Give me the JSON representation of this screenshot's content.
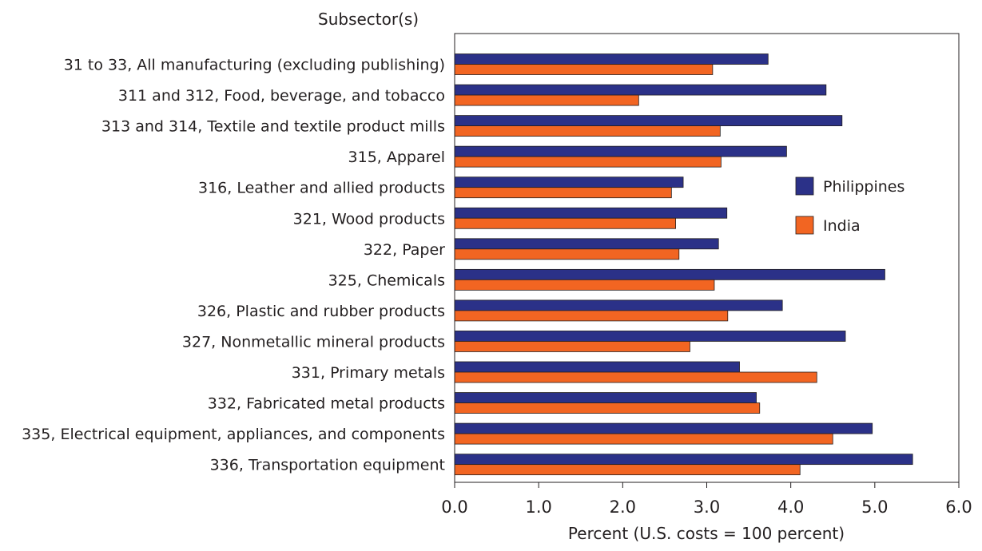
{
  "chart_data": {
    "type": "bar",
    "orientation": "horizontal",
    "title": "",
    "ylabel": "Subsector(s)",
    "xlabel": "Percent (U.S. costs = 100 percent)",
    "xlim": [
      0,
      6
    ],
    "xticks": [
      "0.0",
      "1.0",
      "2.0",
      "3.0",
      "4.0",
      "5.0",
      "6.0"
    ],
    "grid": false,
    "legend_position": "right-middle",
    "categories": [
      "31 to 33, All manufacturing (excluding publishing)",
      "311 and 312, Food, beverage, and tobacco",
      "313 and 314, Textile and textile product mills",
      "315, Apparel",
      "316, Leather and allied products",
      "321, Wood products",
      "322, Paper",
      "325, Chemicals",
      "326, Plastic and rubber products",
      "327, Nonmetallic mineral products",
      "331, Primary metals",
      "332, Fabricated metal products",
      "335, Electrical equipment, appliances, and components",
      "336, Transportation equipment"
    ],
    "series": [
      {
        "name": "Philippines",
        "color": "#2b3188",
        "values": [
          3.73,
          4.42,
          4.61,
          3.95,
          2.72,
          3.24,
          3.14,
          5.12,
          3.9,
          4.65,
          3.39,
          3.59,
          4.97,
          5.45
        ]
      },
      {
        "name": "India",
        "color": "#f26522",
        "values": [
          3.07,
          2.19,
          3.16,
          3.17,
          2.58,
          2.63,
          2.67,
          3.09,
          3.25,
          2.8,
          4.31,
          3.63,
          4.5,
          4.11
        ]
      }
    ]
  }
}
